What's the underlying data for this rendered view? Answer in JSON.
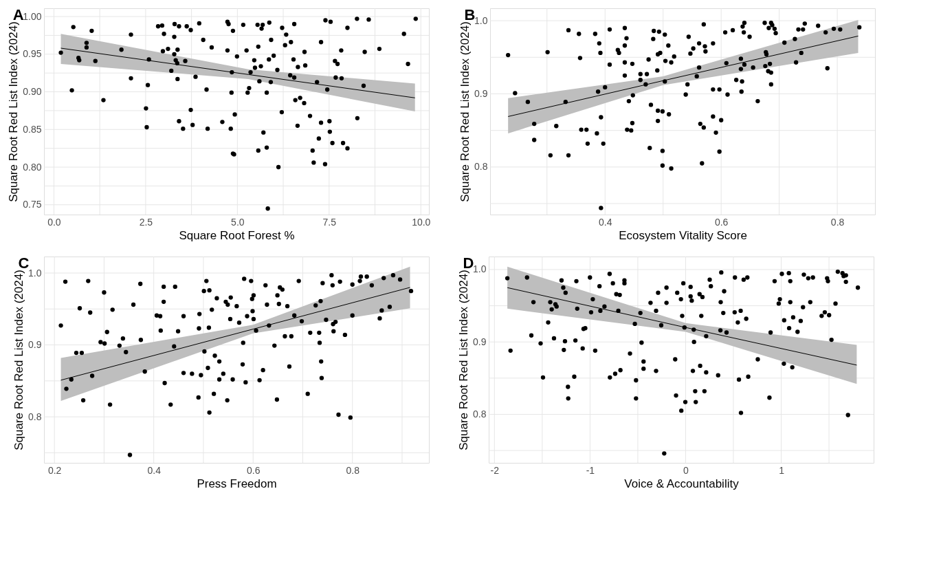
{
  "chart_data": [
    {
      "type": "scatter",
      "title": "A",
      "xlabel": "Square Root Forest %",
      "ylabel": "Square Root Red List Index (2024)",
      "xlim": [
        -0.27,
        10.22
      ],
      "ylim": [
        0.737,
        1.011
      ],
      "grid": true,
      "xticks": [
        {
          "value": 0,
          "label": "0.0"
        },
        {
          "value": 1.25,
          "label": null
        },
        2.5,
        {
          "value": 3.75,
          "label": null
        },
        {
          "value": 5,
          "label": "5.0"
        },
        {
          "value": 6.25,
          "label": null
        },
        7.5,
        {
          "value": 8.75,
          "label": null
        },
        {
          "value": 10,
          "label": "10.0"
        }
      ],
      "yticks": [
        0.75,
        {
          "value": 0.775,
          "label": null
        },
        {
          "value": 0.8,
          "label": "0.80"
        },
        {
          "value": 0.825,
          "label": null
        },
        0.85,
        {
          "value": 0.875,
          "label": null
        },
        {
          "value": 0.9,
          "label": "0.90"
        },
        {
          "value": 0.925,
          "label": null
        },
        0.95,
        {
          "value": 0.975,
          "label": null
        },
        {
          "value": 1.0,
          "label": "1.00"
        }
      ],
      "series": [
        {
          "type": "scatter",
          "color": "#000000",
          "marker": "circle",
          "x": [
            0.19,
            0.53,
            0.49,
            0.67,
            0.69,
            0.89,
            0.89,
            1.03,
            1.13,
            1.35,
            1.84,
            2.1,
            2.1,
            2.51,
            2.53,
            2.56,
            2.59,
            2.84,
            2.95,
            3.0,
            2.97,
            3.11,
            3.2,
            3.29,
            3.28,
            3.28,
            3.32,
            3.36,
            3.37,
            3.37,
            3.41,
            3.41,
            3.52,
            3.58,
            3.62,
            3.73,
            3.73,
            3.78,
            3.86,
            3.96,
            4.07,
            4.16,
            4.19,
            4.3,
            4.59,
            4.73,
            4.73,
            4.76,
            4.82,
            4.84,
            4.85,
            4.88,
            4.88,
            4.91,
            4.93,
            4.99,
            5.16,
            5.25,
            5.28,
            5.32,
            5.36,
            5.46,
            5.48,
            5.55,
            5.57,
            5.57,
            5.6,
            5.64,
            5.66,
            5.69,
            5.71,
            5.8,
            5.8,
            5.83,
            5.86,
            5.87,
            5.91,
            5.92,
            5.99,
            6.09,
            6.12,
            6.21,
            6.22,
            6.33,
            6.3,
            6.46,
            6.53,
            6.44,
            6.55,
            6.55,
            6.58,
            6.64,
            6.65,
            6.71,
            6.82,
            6.83,
            6.85,
            6.98,
            7.05,
            7.08,
            7.17,
            7.28,
            7.28,
            7.22,
            7.4,
            7.39,
            7.45,
            7.51,
            7.52,
            7.54,
            7.59,
            7.66,
            7.68,
            7.73,
            7.83,
            7.84,
            7.88,
            8.0,
            8.0,
            8.26,
            8.27,
            8.44,
            8.47,
            8.58,
            8.87,
            9.54,
            9.65,
            9.86
          ],
          "values": [
            0.952,
            0.986,
            0.902,
            0.945,
            0.942,
            0.965,
            0.959,
            0.981,
            0.941,
            0.889,
            0.956,
            0.976,
            0.918,
            0.878,
            0.853,
            0.909,
            0.943,
            0.987,
            0.988,
            0.977,
            0.954,
            0.957,
            0.928,
            0.99,
            0.973,
            0.95,
            0.942,
            0.938,
            0.917,
            0.956,
            0.861,
            0.987,
            0.851,
            0.941,
            0.987,
            0.982,
            0.876,
            0.856,
            0.92,
            0.991,
            0.969,
            0.903,
            0.851,
            0.959,
            0.86,
            0.993,
            0.955,
            0.99,
            0.851,
            0.899,
            0.926,
            0.981,
            0.818,
            0.817,
            0.87,
            0.947,
            0.989,
            0.955,
            0.899,
            0.905,
            0.926,
            0.942,
            0.932,
            0.989,
            0.96,
            0.822,
            0.914,
            0.934,
            0.984,
            0.989,
            0.846,
            0.899,
            0.826,
            0.745,
            0.943,
            0.992,
            0.913,
            0.969,
            0.948,
            0.929,
            0.8,
            0.873,
            0.985,
            0.976,
            0.962,
            0.966,
            0.943,
            0.922,
            0.99,
            0.919,
            0.889,
            0.855,
            0.933,
            0.892,
            0.885,
            0.953,
            0.935,
            0.868,
            0.822,
            0.806,
            0.913,
            0.966,
            0.859,
            0.838,
            0.995,
            0.804,
            0.903,
            0.861,
            0.847,
            0.993,
            0.832,
            0.941,
            0.919,
            0.937,
            0.955,
            0.918,
            0.832,
            0.985,
            0.825,
            0.997,
            0.865,
            0.908,
            0.953,
            0.996,
            0.957,
            0.977,
            0.937,
            0.997
          ]
        },
        {
          "type": "line",
          "color": "#000000",
          "x": [
            0.19,
            5.3,
            9.84
          ],
          "values": [
            0.958,
            0.923,
            0.892
          ],
          "lower": [
            0.937,
            0.917,
            0.874
          ],
          "upper": [
            0.977,
            0.93,
            0.911
          ]
        }
      ]
    },
    {
      "type": "scatter",
      "title": "B",
      "xlabel": "Ecosystem Vitality Score",
      "ylabel": "Square Root Red List Index (2024)",
      "xlim": [
        0.202,
        0.865
      ],
      "ylim": [
        0.735,
        1.017
      ],
      "grid": true,
      "xticks": [
        {
          "value": 0.3,
          "label": null
        },
        0.4,
        {
          "value": 0.5,
          "label": null
        },
        0.6,
        {
          "value": 0.7,
          "label": null
        },
        0.8
      ],
      "yticks": [
        {
          "value": 0.75,
          "label": null
        },
        0.8,
        {
          "value": 0.85,
          "label": null
        },
        0.9,
        {
          "value": 0.95,
          "label": null
        },
        {
          "value": 1.0,
          "label": "1.0"
        }
      ],
      "series": [
        {
          "type": "scatter",
          "color": "#000000",
          "marker": "circle",
          "x": [
            0.233,
            0.245,
            0.267,
            0.278,
            0.278,
            0.301,
            0.306,
            0.316,
            0.332,
            0.337,
            0.337,
            0.355,
            0.357,
            0.359,
            0.368,
            0.37,
            0.383,
            0.386,
            0.388,
            0.39,
            0.392,
            0.393,
            0.393,
            0.397,
            0.4,
            0.408,
            0.408,
            0.422,
            0.424,
            0.434,
            0.434,
            0.434,
            0.434,
            0.437,
            0.438,
            0.441,
            0.445,
            0.447,
            0.447,
            0.448,
            0.461,
            0.461,
            0.47,
            0.472,
            0.475,
            0.477,
            0.479,
            0.483,
            0.484,
            0.49,
            0.491,
            0.491,
            0.491,
            0.493,
            0.495,
            0.499,
            0.499,
            0.499,
            0.503,
            0.503,
            0.504,
            0.509,
            0.51,
            0.514,
            0.514,
            0.519,
            0.539,
            0.542,
            0.544,
            0.547,
            0.552,
            0.558,
            0.562,
            0.562,
            0.564,
            0.567,
            0.57,
            0.57,
            0.572,
            0.573,
            0.586,
            0.586,
            0.586,
            0.591,
            0.597,
            0.597,
            0.6,
            0.607,
            0.609,
            0.611,
            0.62,
            0.626,
            0.634,
            0.634,
            0.635,
            0.636,
            0.637,
            0.639,
            0.64,
            0.64,
            0.649,
            0.655,
            0.663,
            0.675,
            0.676,
            0.677,
            0.678,
            0.682,
            0.681,
            0.684,
            0.686,
            0.686,
            0.686,
            0.688,
            0.692,
            0.694,
            0.709,
            0.727,
            0.729,
            0.733,
            0.738,
            0.741,
            0.744,
            0.767,
            0.78,
            0.783,
            0.794,
            0.805,
            0.838
          ],
          "values": [
            0.953,
            0.901,
            0.889,
            0.859,
            0.837,
            0.957,
            0.816,
            0.856,
            0.889,
            0.987,
            0.816,
            0.982,
            0.949,
            0.851,
            0.851,
            0.832,
            0.982,
            0.846,
            0.903,
            0.969,
            0.956,
            0.868,
            0.744,
            0.832,
            0.909,
            0.988,
            0.94,
            0.96,
            0.956,
            0.99,
            0.966,
            0.943,
            0.925,
            0.976,
            0.851,
            0.89,
            0.85,
            0.941,
            0.86,
            0.898,
            0.927,
            0.919,
            0.913,
            0.927,
            0.947,
            0.826,
            0.885,
            0.975,
            0.986,
            0.932,
            0.954,
            0.863,
            0.877,
            0.985,
            0.956,
            0.876,
            0.822,
            0.802,
            0.981,
            0.917,
            0.945,
            0.966,
            0.872,
            0.943,
            0.798,
            0.951,
            0.899,
            0.913,
            0.978,
            0.955,
            0.962,
            0.924,
            0.969,
            0.936,
            0.859,
            0.805,
            0.995,
            0.854,
            0.965,
            0.958,
            0.969,
            0.906,
            0.869,
            0.847,
            0.906,
            0.821,
            0.864,
            0.984,
            0.942,
            0.899,
            0.987,
            0.919,
            0.948,
            0.934,
            0.903,
            0.917,
            0.992,
            0.984,
            0.997,
            0.94,
            0.978,
            0.936,
            0.89,
            0.997,
            0.938,
            0.957,
            0.954,
            0.99,
            0.931,
            0.941,
            0.997,
            0.929,
            0.913,
            0.994,
            0.989,
            0.983,
            0.97,
            0.975,
            0.943,
            0.988,
            0.956,
            0.988,
            0.996,
            0.993,
            0.984,
            0.935,
            0.989,
            0.988,
            0.991
          ]
        },
        {
          "type": "line",
          "color": "#000000",
          "x": [
            0.233,
            0.5,
            0.836
          ],
          "values": [
            0.869,
            0.918,
            0.979
          ],
          "lower": [
            0.846,
            0.912,
            0.956
          ],
          "upper": [
            0.894,
            0.924,
            1.001
          ]
        }
      ]
    },
    {
      "type": "scatter",
      "title": "C",
      "xlabel": "Press Freedom",
      "ylabel": "Square Root Red List Index (2024)",
      "xlim": [
        0.179,
        0.954
      ],
      "ylim": [
        0.736,
        1.023
      ],
      "grid": true,
      "xticks": [
        0.2,
        {
          "value": 0.3,
          "label": null
        },
        0.4,
        {
          "value": 0.5,
          "label": null
        },
        0.6,
        {
          "value": 0.7,
          "label": null
        },
        0.8,
        {
          "value": 0.9,
          "label": null
        }
      ],
      "yticks": [
        {
          "value": 0.75,
          "label": null
        },
        0.8,
        {
          "value": 0.85,
          "label": null
        },
        0.9,
        {
          "value": 0.95,
          "label": null
        },
        {
          "value": 1.0,
          "label": "1.0"
        }
      ],
      "series": [
        {
          "type": "scatter",
          "color": "#000000",
          "marker": "circle",
          "x": [
            0.213,
            0.222,
            0.224,
            0.234,
            0.244,
            0.251,
            0.255,
            0.258,
            0.268,
            0.272,
            0.276,
            0.293,
            0.3,
            0.301,
            0.306,
            0.312,
            0.317,
            0.331,
            0.338,
            0.344,
            0.352,
            0.359,
            0.373,
            0.374,
            0.382,
            0.406,
            0.413,
            0.414,
            0.42,
            0.42,
            0.422,
            0.434,
            0.441,
            0.443,
            0.449,
            0.46,
            0.46,
            0.477,
            0.49,
            0.491,
            0.492,
            0.495,
            0.501,
            0.502,
            0.506,
            0.509,
            0.511,
            0.512,
            0.512,
            0.517,
            0.521,
            0.523,
            0.527,
            0.532,
            0.532,
            0.54,
            0.545,
            0.548,
            0.549,
            0.554,
            0.555,
            0.559,
            0.567,
            0.572,
            0.58,
            0.579,
            0.582,
            0.585,
            0.588,
            0.596,
            0.598,
            0.599,
            0.601,
            0.601,
            0.606,
            0.613,
            0.62,
            0.625,
            0.628,
            0.632,
            0.643,
            0.648,
            0.649,
            0.652,
            0.654,
            0.659,
            0.664,
            0.669,
            0.673,
            0.677,
            0.683,
            0.692,
            0.698,
            0.71,
            0.715,
            0.726,
            0.733,
            0.734,
            0.736,
            0.737,
            0.738,
            0.74,
            0.747,
            0.758,
            0.76,
            0.761,
            0.762,
            0.766,
            0.772,
            0.775,
            0.785,
            0.796,
            0.8,
            0.8,
            0.815,
            0.817,
            0.829,
            0.839,
            0.855,
            0.859,
            0.863,
            0.875,
            0.882,
            0.896,
            0.918
          ],
          "values": [
            0.927,
            0.988,
            0.839,
            0.852,
            0.889,
            0.951,
            0.889,
            0.823,
            0.989,
            0.945,
            0.857,
            0.904,
            0.973,
            0.902,
            0.918,
            0.817,
            0.949,
            0.899,
            0.909,
            0.89,
            0.747,
            0.956,
            0.985,
            0.907,
            0.863,
            0.941,
            0.94,
            0.92,
            0.981,
            0.96,
            0.847,
            0.817,
            0.898,
            0.981,
            0.919,
            0.94,
            0.861,
            0.86,
            0.827,
            0.923,
            0.943,
            0.858,
            0.975,
            0.891,
            0.989,
            0.868,
            0.924,
            0.806,
            0.976,
            0.949,
            0.832,
            0.885,
            0.965,
            0.877,
            0.852,
            0.86,
            0.96,
            0.823,
            0.956,
            0.936,
            0.966,
            0.852,
            0.954,
            0.931,
            0.903,
            0.873,
            0.992,
            0.848,
            0.94,
            0.989,
            0.964,
            0.947,
            0.969,
            0.936,
            0.92,
            0.851,
            0.865,
            0.983,
            0.956,
            0.927,
            0.899,
            0.824,
            0.969,
            0.957,
            0.98,
            0.977,
            0.912,
            0.954,
            0.87,
            0.912,
            0.941,
            0.989,
            0.933,
            0.832,
            0.917,
            0.955,
            0.917,
            0.903,
            0.961,
            0.877,
            0.854,
            0.986,
            0.935,
            0.997,
            0.983,
            0.929,
            0.919,
            0.932,
            0.803,
            0.988,
            0.914,
            0.799,
            0.984,
            0.941,
            0.989,
            0.995,
            0.995,
            0.983,
            0.937,
            0.948,
            0.993,
            0.953,
            0.997,
            0.991,
            0.975
          ]
        },
        {
          "type": "line",
          "color": "#000000",
          "x": [
            0.213,
            0.6,
            0.916
          ],
          "values": [
            0.851,
            0.922,
            0.98
          ],
          "lower": [
            0.822,
            0.916,
            0.951
          ],
          "upper": [
            0.882,
            0.928,
            1.009
          ]
        }
      ]
    },
    {
      "type": "scatter",
      "title": "D",
      "xlabel": "Voice & Accountability",
      "ylabel": "Square Root Red List Index (2024)",
      "xlim": [
        -2.06,
        1.967
      ],
      "ylim": [
        0.733,
        1.018
      ],
      "grid": true,
      "xticks": [
        -2,
        {
          "value": -1.5,
          "label": null
        },
        -1,
        {
          "value": -0.5,
          "label": null
        },
        0,
        {
          "value": 0.5,
          "label": null
        },
        1,
        {
          "value": 1.5,
          "label": null
        }
      ],
      "yticks": [
        {
          "value": 0.75,
          "label": null
        },
        0.8,
        {
          "value": 0.85,
          "label": null
        },
        0.9,
        {
          "value": 0.95,
          "label": null
        },
        {
          "value": 1.0,
          "label": "1.0"
        }
      ],
      "series": [
        {
          "type": "scatter",
          "color": "#000000",
          "marker": "circle",
          "x": [
            -1.865,
            -1.832,
            -1.659,
            -1.614,
            -1.592,
            -1.517,
            -1.492,
            -1.438,
            -1.416,
            -1.401,
            -1.377,
            -1.362,
            -1.35,
            -1.298,
            -1.28,
            -1.262,
            -1.274,
            -1.256,
            -1.231,
            -1.228,
            -1.165,
            -1.153,
            -1.143,
            -1.134,
            -1.077,
            -1.068,
            -1.05,
            -1.001,
            -0.989,
            -0.971,
            -0.946,
            -0.901,
            -0.892,
            -0.849,
            -0.795,
            -0.792,
            -0.761,
            -0.737,
            -0.725,
            -0.704,
            -0.689,
            -0.682,
            -0.64,
            -0.64,
            -0.582,
            -0.531,
            -0.519,
            -0.519,
            -0.473,
            -0.461,
            -0.44,
            -0.44,
            -0.367,
            -0.309,
            -0.309,
            -0.288,
            -0.255,
            -0.224,
            -0.2,
            -0.2,
            -0.109,
            -0.1,
            -0.088,
            -0.049,
            -0.045,
            -0.036,
            -0.024,
            -0.012,
            -0.003,
            0.052,
            0.052,
            0.064,
            0.076,
            0.085,
            0.088,
            0.1,
            0.106,
            0.146,
            0.152,
            0.164,
            0.176,
            0.197,
            0.215,
            0.215,
            0.252,
            0.264,
            0.34,
            0.364,
            0.367,
            0.373,
            0.394,
            0.403,
            0.428,
            0.513,
            0.516,
            0.546,
            0.558,
            0.576,
            0.579,
            0.607,
            0.634,
            0.646,
            0.655,
            0.755,
            0.877,
            0.889,
            0.931,
            0.974,
            0.986,
            1.007,
            1.028,
            1.031,
            1.08,
            1.083,
            1.095,
            1.095,
            1.116,
            1.125,
            1.171,
            1.204,
            1.228,
            1.237,
            1.283,
            1.304,
            1.332,
            1.423,
            1.456,
            1.48,
            1.489,
            1.501,
            1.526,
            1.568,
            1.592,
            1.641,
            1.653,
            1.677,
            1.677,
            1.699,
            1.802
          ],
          "values": [
            0.988,
            0.888,
            0.989,
            0.909,
            0.955,
            0.898,
            0.851,
            0.927,
            0.955,
            0.945,
            0.905,
            0.952,
            0.949,
            0.985,
            0.975,
            0.901,
            0.889,
            0.968,
            0.838,
            0.822,
            0.852,
            0.902,
            0.984,
            0.946,
            0.891,
            0.918,
            0.919,
            0.989,
            0.941,
            0.959,
            0.888,
            0.977,
            0.943,
            0.949,
            0.994,
            0.851,
            0.981,
            0.856,
            0.966,
            0.943,
            0.965,
            0.861,
            0.985,
            0.981,
            0.884,
            0.925,
            0.847,
            0.822,
            0.94,
            0.899,
            0.873,
            0.863,
            0.954,
            0.943,
            0.86,
            0.968,
            0.923,
            0.746,
            0.975,
            0.954,
            0.876,
            0.826,
            0.968,
            0.959,
            0.805,
            0.936,
            0.981,
            0.92,
            0.817,
            0.976,
            0.963,
            0.957,
            0.86,
            0.917,
            0.9,
            0.832,
            0.817,
            0.966,
            0.867,
            0.936,
            0.962,
            0.832,
            0.908,
            0.858,
            0.986,
            0.977,
            0.854,
            0.916,
            0.955,
            0.996,
            0.94,
            0.97,
            0.913,
            0.941,
            0.989,
            0.927,
            0.848,
            0.943,
            0.802,
            0.986,
            0.932,
            0.989,
            0.852,
            0.876,
            0.823,
            0.913,
            0.984,
            0.953,
            0.959,
            0.994,
            0.87,
            0.93,
            0.995,
            0.919,
            0.984,
            0.955,
            0.865,
            0.934,
            0.914,
            0.929,
            0.948,
            0.993,
            0.988,
            0.955,
            0.989,
            0.936,
            0.941,
            0.988,
            0.984,
            0.937,
            0.903,
            0.953,
            0.997,
            0.995,
            0.991,
            0.992,
            0.983,
            0.799,
            0.975
          ]
        },
        {
          "type": "line",
          "color": "#000000",
          "x": [
            -1.865,
            0.0,
            1.79
          ],
          "values": [
            0.975,
            0.92,
            0.868
          ],
          "lower": [
            0.946,
            0.914,
            0.842
          ],
          "upper": [
            1.004,
            0.926,
            0.896
          ]
        }
      ]
    }
  ]
}
